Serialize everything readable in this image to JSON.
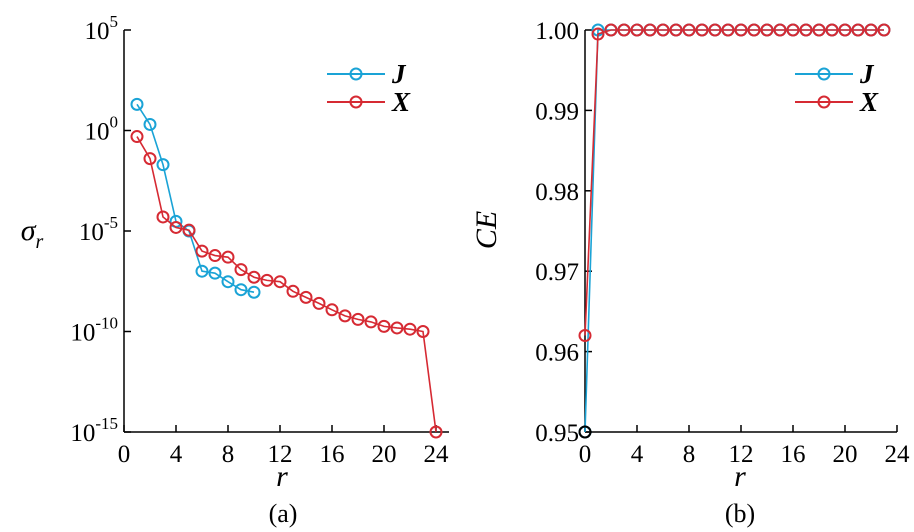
{
  "chart_data": [
    {
      "type": "line",
      "subtitle": "(a)",
      "xlabel": "r",
      "ylabel": "σ",
      "ylabel_subscript": "r",
      "yscale": "log",
      "xlim": [
        0,
        25
      ],
      "ylim": [
        1e-15,
        100000.0
      ],
      "xticks": [
        "0",
        "4",
        "8",
        "12",
        "16",
        "20",
        "24"
      ],
      "yticks": [
        {
          "base": "10",
          "exp": "5",
          "value": 100000.0
        },
        {
          "base": "10",
          "exp": "0",
          "value": 1
        },
        {
          "base": "10",
          "exp": "-5",
          "value": 1e-05
        },
        {
          "base": "10",
          "exp": "-10",
          "value": 1e-10
        },
        {
          "base": "10",
          "exp": "-15",
          "value": 1e-15
        }
      ],
      "legend": "top-right",
      "series": [
        {
          "name": "J",
          "color": "#1aa3d6",
          "x": [
            1,
            2,
            3,
            4,
            5,
            6,
            7,
            8,
            9,
            10
          ],
          "y": [
            20,
            2,
            0.02,
            3e-05,
            1e-05,
            1e-07,
            8e-08,
            3e-08,
            1.2e-08,
            9e-09
          ]
        },
        {
          "name": "X",
          "color": "#d62a33",
          "x": [
            1,
            2,
            3,
            4,
            5,
            6,
            7,
            8,
            9,
            10,
            11,
            12,
            13,
            14,
            15,
            16,
            17,
            18,
            19,
            20,
            21,
            22,
            23,
            24
          ],
          "y": [
            0.5,
            0.04,
            5e-05,
            1.5e-05,
            1.1e-05,
            1e-06,
            6e-07,
            5e-07,
            1.2e-07,
            5e-08,
            3.5e-08,
            3e-08,
            1e-08,
            5e-09,
            2.5e-09,
            1.2e-09,
            6e-10,
            4e-10,
            3e-10,
            1.8e-10,
            1.5e-10,
            1.3e-10,
            1e-10,
            1e-15
          ]
        }
      ]
    },
    {
      "type": "line",
      "subtitle": "(b)",
      "xlabel": "r",
      "ylabel": "CE",
      "xlim": [
        0,
        24
      ],
      "ylim": [
        0.95,
        1.0
      ],
      "xticks": [
        "0",
        "4",
        "8",
        "12",
        "16",
        "20",
        "24"
      ],
      "yticks": [
        "0.95",
        "0.96",
        "0.97",
        "0.98",
        "0.99",
        "1.00"
      ],
      "legend": "top-right",
      "series": [
        {
          "name": "J",
          "color": "#1aa3d6",
          "x": [
            0,
            1,
            2,
            3,
            4,
            5,
            6,
            7,
            8,
            9,
            10,
            11,
            12,
            13,
            14,
            15,
            16,
            17,
            18,
            19,
            20,
            21,
            22,
            23
          ],
          "y": [
            0.95,
            1.0,
            1.0,
            1.0,
            1.0,
            1.0,
            1.0,
            1.0,
            1.0,
            1.0,
            1.0,
            1.0,
            1.0,
            1.0,
            1.0,
            1.0,
            1.0,
            1.0,
            1.0,
            1.0,
            1.0,
            1.0,
            1.0,
            1.0
          ]
        },
        {
          "name": "X",
          "color": "#d62a33",
          "x": [
            0,
            1,
            2,
            3,
            4,
            5,
            6,
            7,
            8,
            9,
            10,
            11,
            12,
            13,
            14,
            15,
            16,
            17,
            18,
            19,
            20,
            21,
            22,
            23
          ],
          "y": [
            0.962,
            0.9995,
            1.0,
            1.0,
            1.0,
            1.0,
            1.0,
            1.0,
            1.0,
            1.0,
            1.0,
            1.0,
            1.0,
            1.0,
            1.0,
            1.0,
            1.0,
            1.0,
            1.0,
            1.0,
            1.0,
            1.0,
            1.0,
            1.0
          ]
        },
        {
          "name": "",
          "color": "#000000",
          "x": [
            0
          ],
          "y": [
            0.95
          ]
        }
      ]
    }
  ]
}
